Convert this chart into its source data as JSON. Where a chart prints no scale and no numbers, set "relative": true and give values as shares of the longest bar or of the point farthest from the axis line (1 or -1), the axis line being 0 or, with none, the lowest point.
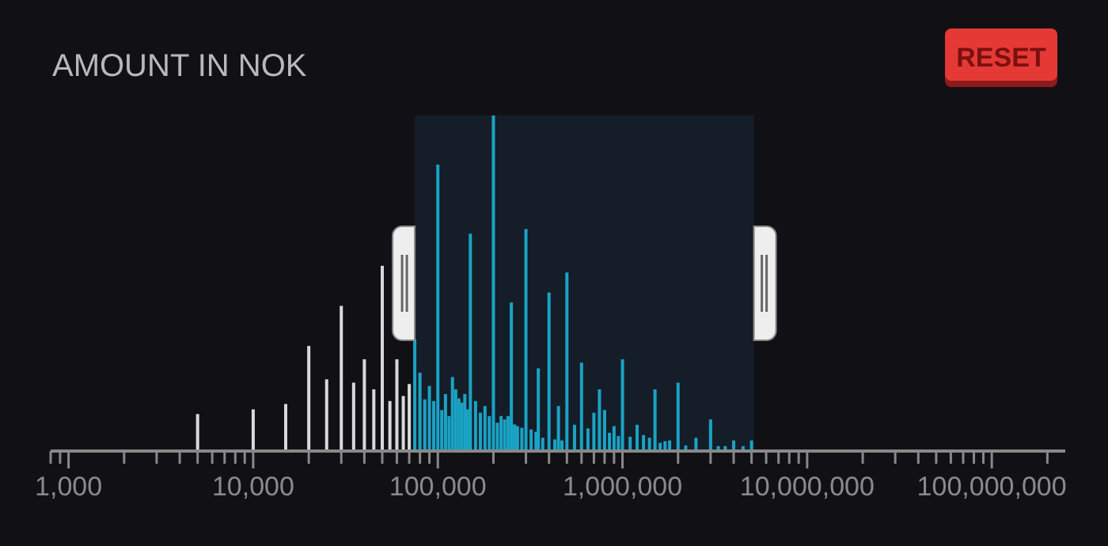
{
  "chart_data": {
    "type": "bar",
    "title": "AMOUNT IN NOK",
    "relative": true,
    "log": "x",
    "xlim": [
      800,
      250000000
    ],
    "xticks": [
      {
        "value": 800,
        "label": null
      },
      {
        "value": 900,
        "label": null
      },
      {
        "value": 1000,
        "label": "1,000"
      },
      {
        "value": 2000,
        "label": null
      },
      {
        "value": 3000,
        "label": null
      },
      {
        "value": 4000,
        "label": null
      },
      {
        "value": 5000,
        "label": null
      },
      {
        "value": 6000,
        "label": null
      },
      {
        "value": 7000,
        "label": null
      },
      {
        "value": 8000,
        "label": null
      },
      {
        "value": 9000,
        "label": null
      },
      {
        "value": 10000,
        "label": "10,000"
      },
      {
        "value": 20000,
        "label": null
      },
      {
        "value": 30000,
        "label": null
      },
      {
        "value": 40000,
        "label": null
      },
      {
        "value": 50000,
        "label": null
      },
      {
        "value": 60000,
        "label": null
      },
      {
        "value": 70000,
        "label": null
      },
      {
        "value": 80000,
        "label": null
      },
      {
        "value": 90000,
        "label": null
      },
      {
        "value": 100000,
        "label": "100,000"
      },
      {
        "value": 200000,
        "label": null
      },
      {
        "value": 300000,
        "label": null
      },
      {
        "value": 400000,
        "label": null
      },
      {
        "value": 500000,
        "label": null
      },
      {
        "value": 600000,
        "label": null
      },
      {
        "value": 700000,
        "label": null
      },
      {
        "value": 800000,
        "label": null
      },
      {
        "value": 900000,
        "label": null
      },
      {
        "value": 1000000,
        "label": "1,000,000"
      },
      {
        "value": 2000000,
        "label": null
      },
      {
        "value": 3000000,
        "label": null
      },
      {
        "value": 4000000,
        "label": null
      },
      {
        "value": 5000000,
        "label": null
      },
      {
        "value": 6000000,
        "label": null
      },
      {
        "value": 7000000,
        "label": null
      },
      {
        "value": 8000000,
        "label": null
      },
      {
        "value": 9000000,
        "label": null
      },
      {
        "value": 10000000,
        "label": "10,000,000"
      },
      {
        "value": 20000000,
        "label": null
      },
      {
        "value": 30000000,
        "label": null
      },
      {
        "value": 40000000,
        "label": null
      },
      {
        "value": 50000000,
        "label": null
      },
      {
        "value": 60000000,
        "label": null
      },
      {
        "value": 70000000,
        "label": null
      },
      {
        "value": 80000000,
        "label": null
      },
      {
        "value": 90000000,
        "label": null
      },
      {
        "value": 100000000,
        "label": "100,000,000"
      },
      {
        "value": 200000000,
        "label": null
      }
    ],
    "bands": [
      {
        "axis": "x",
        "from": 75000,
        "to": 5150000,
        "color": "#151d28"
      }
    ],
    "annotations": [
      "RESET"
    ],
    "series": [
      {
        "x": [
          5000,
          10000,
          15000,
          20000,
          25000,
          30000,
          35000,
          40000,
          45000,
          50000,
          55000,
          60000,
          65000,
          70000
        ],
        "values": [
          0.106,
          0.12,
          0.136,
          0.31,
          0.21,
          0.43,
          0.2,
          0.27,
          0.18,
          0.55,
          0.145,
          0.27,
          0.16,
          0.196
        ],
        "color": "#d9d9d9"
      },
      {
        "x": [
          75000,
          80000,
          85000,
          90000,
          95000,
          100000,
          105000,
          110000,
          115000,
          120000,
          125000,
          130000,
          135000,
          140000,
          145000,
          150000,
          160000,
          170000,
          180000,
          190000,
          200000,
          210000,
          220000,
          230000,
          240000,
          250000,
          260000,
          270000,
          285000,
          300000,
          320000,
          340000,
          350000,
          370000,
          400000,
          430000,
          450000,
          470000,
          500000,
          550000,
          600000,
          650000,
          700000,
          750000,
          800000,
          850000,
          900000,
          950000,
          1000000,
          1100000,
          1200000,
          1300000,
          1400000,
          1500000,
          1600000,
          1700000,
          1800000,
          2000000,
          2200000,
          2500000,
          3000000,
          3300000,
          3600000,
          4000000,
          4500000,
          5000000
        ],
        "values": [
          0.33,
          0.23,
          0.15,
          0.19,
          0.145,
          0.853,
          0.118,
          0.166,
          0.1,
          0.217,
          0.18,
          0.153,
          0.14,
          0.166,
          0.12,
          0.646,
          0.145,
          0.11,
          0.13,
          0.1,
          1.0,
          0.08,
          0.1,
          0.09,
          0.1,
          0.44,
          0.075,
          0.07,
          0.065,
          0.66,
          0.06,
          0.053,
          0.243,
          0.035,
          0.47,
          0.03,
          0.13,
          0.027,
          0.53,
          0.074,
          0.26,
          0.063,
          0.11,
          0.18,
          0.118,
          0.05,
          0.07,
          0.04,
          0.27,
          0.038,
          0.074,
          0.043,
          0.035,
          0.18,
          0.02,
          0.025,
          0.027,
          0.2,
          0.012,
          0.035,
          0.09,
          0.01,
          0.01,
          0.027,
          0.01,
          0.027
        ],
        "color": "#1aa3c4"
      }
    ]
  }
}
